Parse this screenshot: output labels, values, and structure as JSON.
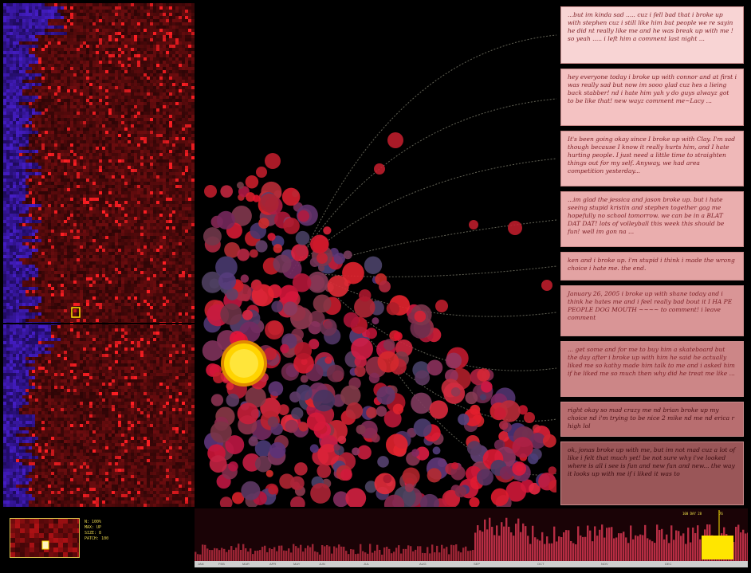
{
  "quotes": [
    {
      "text": "...but im kinda sad ..... cuz i fell bad that i broke up with stephen cuz i still like him but people we re sayin he did nt really like me and he was break up with me ! so yeah ..... i left him a comment last night ..."
    },
    {
      "text": "hey everyone today i broke up with connor and at first i was really sad but now im sooo glad cuz hes a lieing back stabber! nd i hate him yah y do guys alwayz got to be like that! new wayz comment me~Lacy ..."
    },
    {
      "text": "It's been going okay since I broke up with Clay. I'm sad though because I know it really hurts him, and I hate hurting people. I just need a little time to straighten things out for my self. Anyway, we had area competition yesterday..."
    },
    {
      "text": "...im glad the jessica and jason broke up. but i hate seeing stupid kristin and stephen together gag me hopefully no school tomorrow. we can be in a BLAT DAT DAT! lots of volleyball this week this should be fun! well im gon na ..."
    },
    {
      "text": "ken and i broke up. i'm stupid i think i made the wrong choice i hate me. the end."
    },
    {
      "text": "January 26, 2005 i broke up with shane today and i think he hates me and i feel really bad bout it I HA PE PEOPLE DOG MOUTH ~~~~ to comment! i leave comment"
    },
    {
      "text": "... get some and for me to buy him a skateboard but the day after i broke up with him he said he actually liked me so kathy made him talk to me and i asked him if he liked me so much then why did he treat me like ..."
    },
    {
      "text": "right okay so mad crazy me nd brian broke up my choice nd i'm trying to be nice 2 mike nd me nd erica r high lol"
    },
    {
      "text": "ok, jonas broke up with me, but im not mad cuz a lot of like i felt that much yet! be not sure why i've looked where is all i see is fun and new fun and new... the way it looks up with me if i liked it was to"
    }
  ],
  "mini_stats": [
    "N: 100%",
    "MAX: UP",
    "SIZE: 8",
    "PATCH: 100"
  ],
  "timeline": {
    "zoom_label": "100 DAY 28",
    "count_label": "76",
    "months": [
      "JAN",
      "FEB",
      "MAR",
      "APR",
      "MAY",
      "JUN",
      "JUL",
      "AUG",
      "SEP",
      "OCT",
      "NOV",
      "DEC"
    ]
  },
  "colors": {
    "background": "#000000",
    "accent": "#ffe600",
    "bubble": "#d8202a",
    "heat_blue": "#2a1a9a",
    "quote_bg": "#f4c6c6"
  }
}
